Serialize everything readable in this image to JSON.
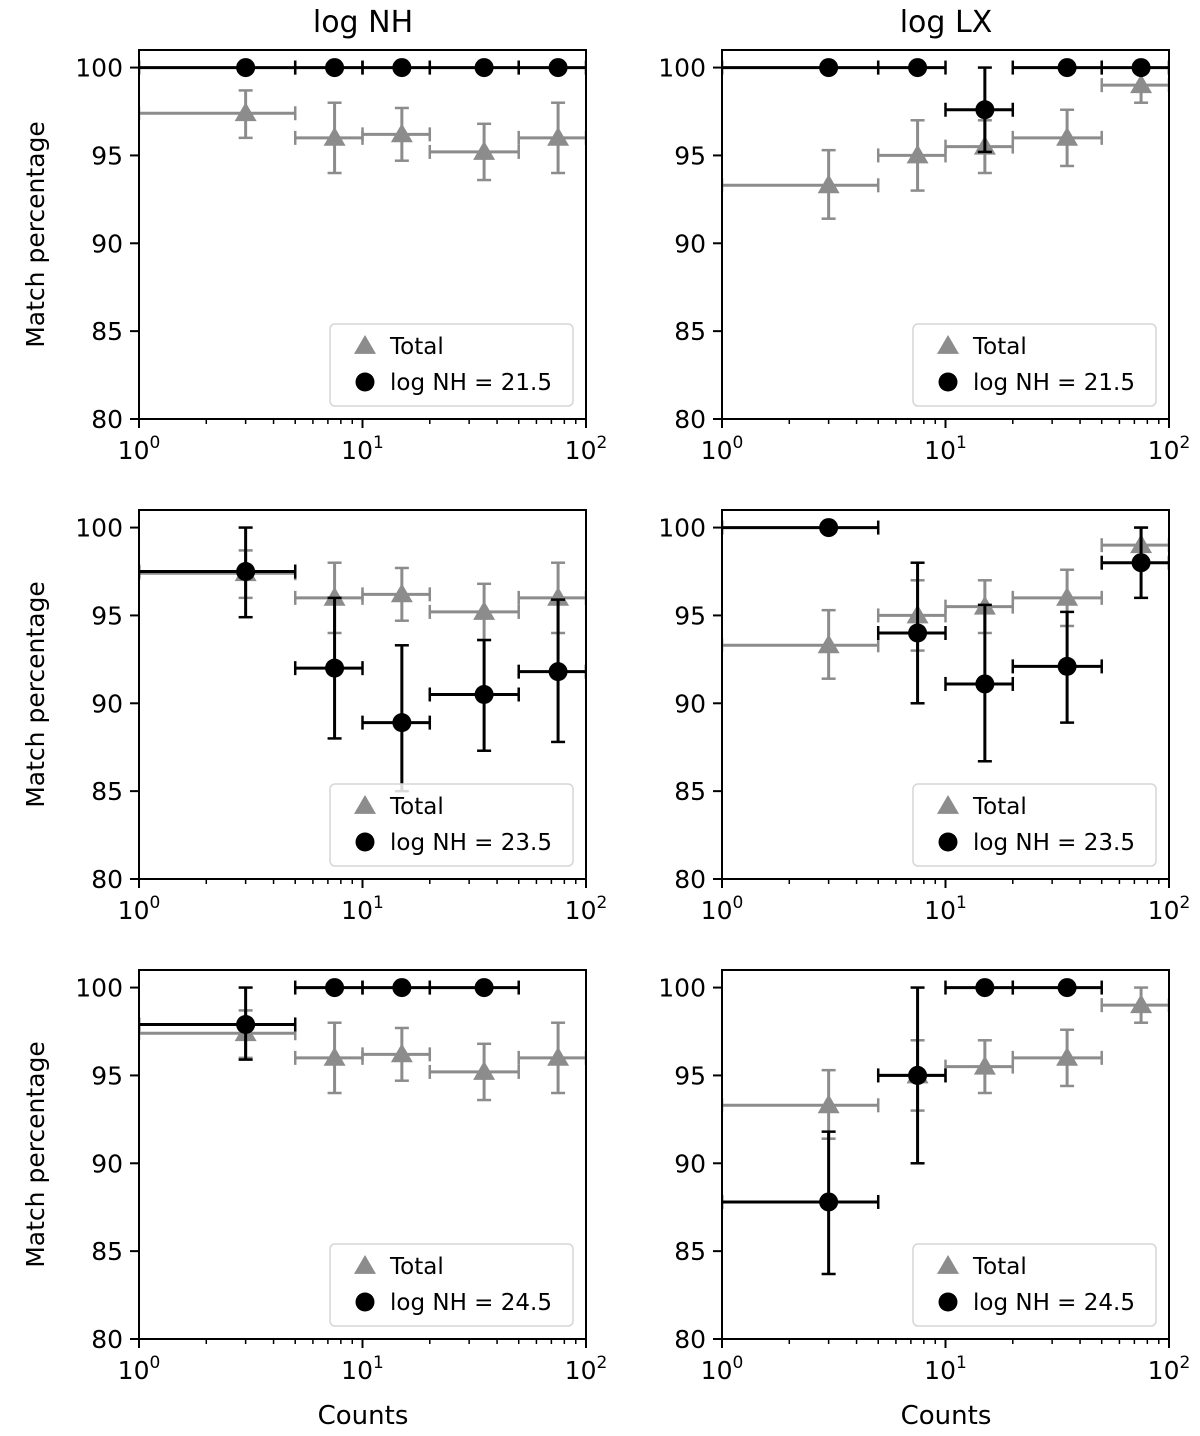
{
  "figure": {
    "column_titles": [
      "log NH",
      "log LX"
    ],
    "ylabel": "Match percentage",
    "xlabel": "Counts"
  },
  "chart_data": [
    {
      "type": "scatter",
      "row": 0,
      "col": 0,
      "xscale": "log",
      "xlim": [
        1,
        100
      ],
      "ylim": [
        80,
        101
      ],
      "yticks": [
        80,
        85,
        90,
        95,
        100
      ],
      "legend_position": "lower-right",
      "series": [
        {
          "name": "Total",
          "marker": "triangle",
          "color": "#8c8c8c",
          "points": [
            {
              "x": 3,
              "x_lo": 1,
              "x_hi": 5,
              "y": 97.4,
              "y_lo": 96.0,
              "y_hi": 98.7
            },
            {
              "x": 7.5,
              "x_lo": 5,
              "x_hi": 10,
              "y": 96.0,
              "y_lo": 94.0,
              "y_hi": 98.0
            },
            {
              "x": 15,
              "x_lo": 10,
              "x_hi": 20,
              "y": 96.2,
              "y_lo": 94.7,
              "y_hi": 97.7
            },
            {
              "x": 35,
              "x_lo": 20,
              "x_hi": 50,
              "y": 95.2,
              "y_lo": 93.6,
              "y_hi": 96.8
            },
            {
              "x": 75,
              "x_lo": 50,
              "x_hi": 100,
              "y": 96.0,
              "y_lo": 94.0,
              "y_hi": 98.0
            }
          ]
        },
        {
          "name": "log NH = 21.5",
          "marker": "circle",
          "color": "#000000",
          "points": [
            {
              "x": 3,
              "x_lo": 1,
              "x_hi": 5,
              "y": 100,
              "y_lo": 100,
              "y_hi": 100
            },
            {
              "x": 7.5,
              "x_lo": 5,
              "x_hi": 10,
              "y": 100,
              "y_lo": 100,
              "y_hi": 100
            },
            {
              "x": 15,
              "x_lo": 10,
              "x_hi": 20,
              "y": 100,
              "y_lo": 100,
              "y_hi": 100
            },
            {
              "x": 35,
              "x_lo": 20,
              "x_hi": 50,
              "y": 100,
              "y_lo": 100,
              "y_hi": 100
            },
            {
              "x": 75,
              "x_lo": 50,
              "x_hi": 100,
              "y": 100,
              "y_lo": 100,
              "y_hi": 100
            }
          ]
        }
      ]
    },
    {
      "type": "scatter",
      "row": 0,
      "col": 1,
      "xscale": "log",
      "xlim": [
        1,
        100
      ],
      "ylim": [
        80,
        101
      ],
      "yticks": [
        80,
        85,
        90,
        95,
        100
      ],
      "legend_position": "lower-right",
      "series": [
        {
          "name": "Total",
          "marker": "triangle",
          "color": "#8c8c8c",
          "points": [
            {
              "x": 3,
              "x_lo": 1,
              "x_hi": 5,
              "y": 93.3,
              "y_lo": 91.4,
              "y_hi": 95.3
            },
            {
              "x": 7.5,
              "x_lo": 5,
              "x_hi": 10,
              "y": 95.0,
              "y_lo": 93.0,
              "y_hi": 97.0
            },
            {
              "x": 15,
              "x_lo": 10,
              "x_hi": 20,
              "y": 95.5,
              "y_lo": 94.0,
              "y_hi": 97.0
            },
            {
              "x": 35,
              "x_lo": 20,
              "x_hi": 50,
              "y": 96.0,
              "y_lo": 94.4,
              "y_hi": 97.6
            },
            {
              "x": 75,
              "x_lo": 50,
              "x_hi": 100,
              "y": 99.0,
              "y_lo": 98.0,
              "y_hi": 100
            }
          ]
        },
        {
          "name": "log NH = 21.5",
          "marker": "circle",
          "color": "#000000",
          "points": [
            {
              "x": 3,
              "x_lo": 1,
              "x_hi": 5,
              "y": 100,
              "y_lo": 100,
              "y_hi": 100
            },
            {
              "x": 7.5,
              "x_lo": 5,
              "x_hi": 10,
              "y": 100,
              "y_lo": 100,
              "y_hi": 100
            },
            {
              "x": 15,
              "x_lo": 10,
              "x_hi": 20,
              "y": 97.6,
              "y_lo": 95.2,
              "y_hi": 100
            },
            {
              "x": 35,
              "x_lo": 20,
              "x_hi": 50,
              "y": 100,
              "y_lo": 100,
              "y_hi": 100
            },
            {
              "x": 75,
              "x_lo": 50,
              "x_hi": 100,
              "y": 100,
              "y_lo": 100,
              "y_hi": 100
            }
          ]
        }
      ]
    },
    {
      "type": "scatter",
      "row": 1,
      "col": 0,
      "xscale": "log",
      "xlim": [
        1,
        100
      ],
      "ylim": [
        80,
        101
      ],
      "yticks": [
        80,
        85,
        90,
        95,
        100
      ],
      "legend_position": "lower-right",
      "series": [
        {
          "name": "Total",
          "marker": "triangle",
          "color": "#8c8c8c",
          "points": [
            {
              "x": 3,
              "x_lo": 1,
              "x_hi": 5,
              "y": 97.4,
              "y_lo": 96.0,
              "y_hi": 98.7
            },
            {
              "x": 7.5,
              "x_lo": 5,
              "x_hi": 10,
              "y": 96.0,
              "y_lo": 94.0,
              "y_hi": 98.0
            },
            {
              "x": 15,
              "x_lo": 10,
              "x_hi": 20,
              "y": 96.2,
              "y_lo": 94.7,
              "y_hi": 97.7
            },
            {
              "x": 35,
              "x_lo": 20,
              "x_hi": 50,
              "y": 95.2,
              "y_lo": 93.6,
              "y_hi": 96.8
            },
            {
              "x": 75,
              "x_lo": 50,
              "x_hi": 100,
              "y": 96.0,
              "y_lo": 94.0,
              "y_hi": 98.0
            }
          ]
        },
        {
          "name": "log NH = 23.5",
          "marker": "circle",
          "color": "#000000",
          "points": [
            {
              "x": 3,
              "x_lo": 1,
              "x_hi": 5,
              "y": 97.5,
              "y_lo": 94.9,
              "y_hi": 100
            },
            {
              "x": 7.5,
              "x_lo": 5,
              "x_hi": 10,
              "y": 92.0,
              "y_lo": 88.0,
              "y_hi": 96.0
            },
            {
              "x": 15,
              "x_lo": 10,
              "x_hi": 20,
              "y": 88.9,
              "y_lo": 85.0,
              "y_hi": 93.3
            },
            {
              "x": 35,
              "x_lo": 20,
              "x_hi": 50,
              "y": 90.5,
              "y_lo": 87.3,
              "y_hi": 93.6
            },
            {
              "x": 75,
              "x_lo": 50,
              "x_hi": 100,
              "y": 91.8,
              "y_lo": 87.8,
              "y_hi": 95.9
            }
          ]
        }
      ]
    },
    {
      "type": "scatter",
      "row": 1,
      "col": 1,
      "xscale": "log",
      "xlim": [
        1,
        100
      ],
      "ylim": [
        80,
        101
      ],
      "yticks": [
        80,
        85,
        90,
        95,
        100
      ],
      "legend_position": "lower-right",
      "series": [
        {
          "name": "Total",
          "marker": "triangle",
          "color": "#8c8c8c",
          "points": [
            {
              "x": 3,
              "x_lo": 1,
              "x_hi": 5,
              "y": 93.3,
              "y_lo": 91.4,
              "y_hi": 95.3
            },
            {
              "x": 7.5,
              "x_lo": 5,
              "x_hi": 10,
              "y": 95.0,
              "y_lo": 93.0,
              "y_hi": 97.0
            },
            {
              "x": 15,
              "x_lo": 10,
              "x_hi": 20,
              "y": 95.5,
              "y_lo": 94.0,
              "y_hi": 97.0
            },
            {
              "x": 35,
              "x_lo": 20,
              "x_hi": 50,
              "y": 96.0,
              "y_lo": 94.4,
              "y_hi": 97.6
            },
            {
              "x": 75,
              "x_lo": 50,
              "x_hi": 100,
              "y": 99.0,
              "y_lo": 98.0,
              "y_hi": 100
            }
          ]
        },
        {
          "name": "log NH = 23.5",
          "marker": "circle",
          "color": "#000000",
          "points": [
            {
              "x": 3,
              "x_lo": 1,
              "x_hi": 5,
              "y": 100,
              "y_lo": 100,
              "y_hi": 100
            },
            {
              "x": 7.5,
              "x_lo": 5,
              "x_hi": 10,
              "y": 94.0,
              "y_lo": 90.0,
              "y_hi": 98.0
            },
            {
              "x": 15,
              "x_lo": 10,
              "x_hi": 20,
              "y": 91.1,
              "y_lo": 86.7,
              "y_hi": 95.6
            },
            {
              "x": 35,
              "x_lo": 20,
              "x_hi": 50,
              "y": 92.1,
              "y_lo": 88.9,
              "y_hi": 95.2
            },
            {
              "x": 75,
              "x_lo": 50,
              "x_hi": 100,
              "y": 98.0,
              "y_lo": 96.0,
              "y_hi": 100
            }
          ]
        }
      ]
    },
    {
      "type": "scatter",
      "row": 2,
      "col": 0,
      "xscale": "log",
      "xlim": [
        1,
        100
      ],
      "ylim": [
        80,
        101
      ],
      "yticks": [
        80,
        85,
        90,
        95,
        100
      ],
      "legend_position": "lower-right",
      "series": [
        {
          "name": "Total",
          "marker": "triangle",
          "color": "#8c8c8c",
          "points": [
            {
              "x": 3,
              "x_lo": 1,
              "x_hi": 5,
              "y": 97.4,
              "y_lo": 96.0,
              "y_hi": 98.7
            },
            {
              "x": 7.5,
              "x_lo": 5,
              "x_hi": 10,
              "y": 96.0,
              "y_lo": 94.0,
              "y_hi": 98.0
            },
            {
              "x": 15,
              "x_lo": 10,
              "x_hi": 20,
              "y": 96.2,
              "y_lo": 94.7,
              "y_hi": 97.7
            },
            {
              "x": 35,
              "x_lo": 20,
              "x_hi": 50,
              "y": 95.2,
              "y_lo": 93.6,
              "y_hi": 96.8
            },
            {
              "x": 75,
              "x_lo": 50,
              "x_hi": 100,
              "y": 96.0,
              "y_lo": 94.0,
              "y_hi": 98.0
            }
          ]
        },
        {
          "name": "log NH = 24.5",
          "marker": "circle",
          "color": "#000000",
          "points": [
            {
              "x": 3,
              "x_lo": 1,
              "x_hi": 5,
              "y": 97.9,
              "y_lo": 95.9,
              "y_hi": 100
            },
            {
              "x": 7.5,
              "x_lo": 5,
              "x_hi": 10,
              "y": 100,
              "y_lo": 100,
              "y_hi": 100
            },
            {
              "x": 15,
              "x_lo": 10,
              "x_hi": 20,
              "y": 100,
              "y_lo": 100,
              "y_hi": 100
            },
            {
              "x": 35,
              "x_lo": 20,
              "x_hi": 50,
              "y": 100,
              "y_lo": 100,
              "y_hi": 100
            }
          ]
        }
      ]
    },
    {
      "type": "scatter",
      "row": 2,
      "col": 1,
      "xscale": "log",
      "xlim": [
        1,
        100
      ],
      "ylim": [
        80,
        101
      ],
      "yticks": [
        80,
        85,
        90,
        95,
        100
      ],
      "legend_position": "lower-right",
      "series": [
        {
          "name": "Total",
          "marker": "triangle",
          "color": "#8c8c8c",
          "points": [
            {
              "x": 3,
              "x_lo": 1,
              "x_hi": 5,
              "y": 93.3,
              "y_lo": 91.4,
              "y_hi": 95.3
            },
            {
              "x": 7.5,
              "x_lo": 5,
              "x_hi": 10,
              "y": 95.0,
              "y_lo": 93.0,
              "y_hi": 97.0
            },
            {
              "x": 15,
              "x_lo": 10,
              "x_hi": 20,
              "y": 95.5,
              "y_lo": 94.0,
              "y_hi": 97.0
            },
            {
              "x": 35,
              "x_lo": 20,
              "x_hi": 50,
              "y": 96.0,
              "y_lo": 94.4,
              "y_hi": 97.6
            },
            {
              "x": 75,
              "x_lo": 50,
              "x_hi": 100,
              "y": 99.0,
              "y_lo": 98.0,
              "y_hi": 100
            }
          ]
        },
        {
          "name": "log NH = 24.5",
          "marker": "circle",
          "color": "#000000",
          "points": [
            {
              "x": 3,
              "x_lo": 1,
              "x_hi": 5,
              "y": 87.8,
              "y_lo": 83.7,
              "y_hi": 91.8
            },
            {
              "x": 7.5,
              "x_lo": 5,
              "x_hi": 10,
              "y": 95.0,
              "y_lo": 90.0,
              "y_hi": 100
            },
            {
              "x": 15,
              "x_lo": 10,
              "x_hi": 20,
              "y": 100,
              "y_lo": 100,
              "y_hi": 100
            },
            {
              "x": 35,
              "x_lo": 20,
              "x_hi": 50,
              "y": 100,
              "y_lo": 100,
              "y_hi": 100
            }
          ]
        }
      ]
    }
  ]
}
